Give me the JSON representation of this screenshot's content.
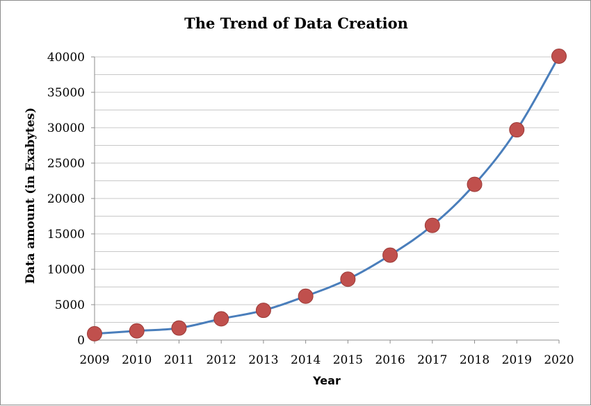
{
  "chart_data": {
    "type": "line",
    "title": "The Trend of Data Creation",
    "xlabel": "Year",
    "ylabel": "Data amount (in Exabytes)",
    "categories": [
      "2009",
      "2010",
      "2011",
      "2012",
      "2013",
      "2014",
      "2015",
      "2016",
      "2017",
      "2018",
      "2019",
      "2020"
    ],
    "series": [
      {
        "name": "Data amount",
        "values": [
          900,
          1300,
          1700,
          3000,
          4200,
          6200,
          8600,
          12000,
          16200,
          22000,
          29700,
          40100
        ],
        "line_color": "#4a7ebb",
        "marker_color": "#c0504d",
        "marker_edge": "#9b3a37"
      }
    ],
    "ylim": [
      0,
      40000
    ],
    "yticks": [
      0,
      5000,
      10000,
      15000,
      20000,
      25000,
      30000,
      35000,
      40000
    ],
    "gridlines": true,
    "legend": "none"
  }
}
